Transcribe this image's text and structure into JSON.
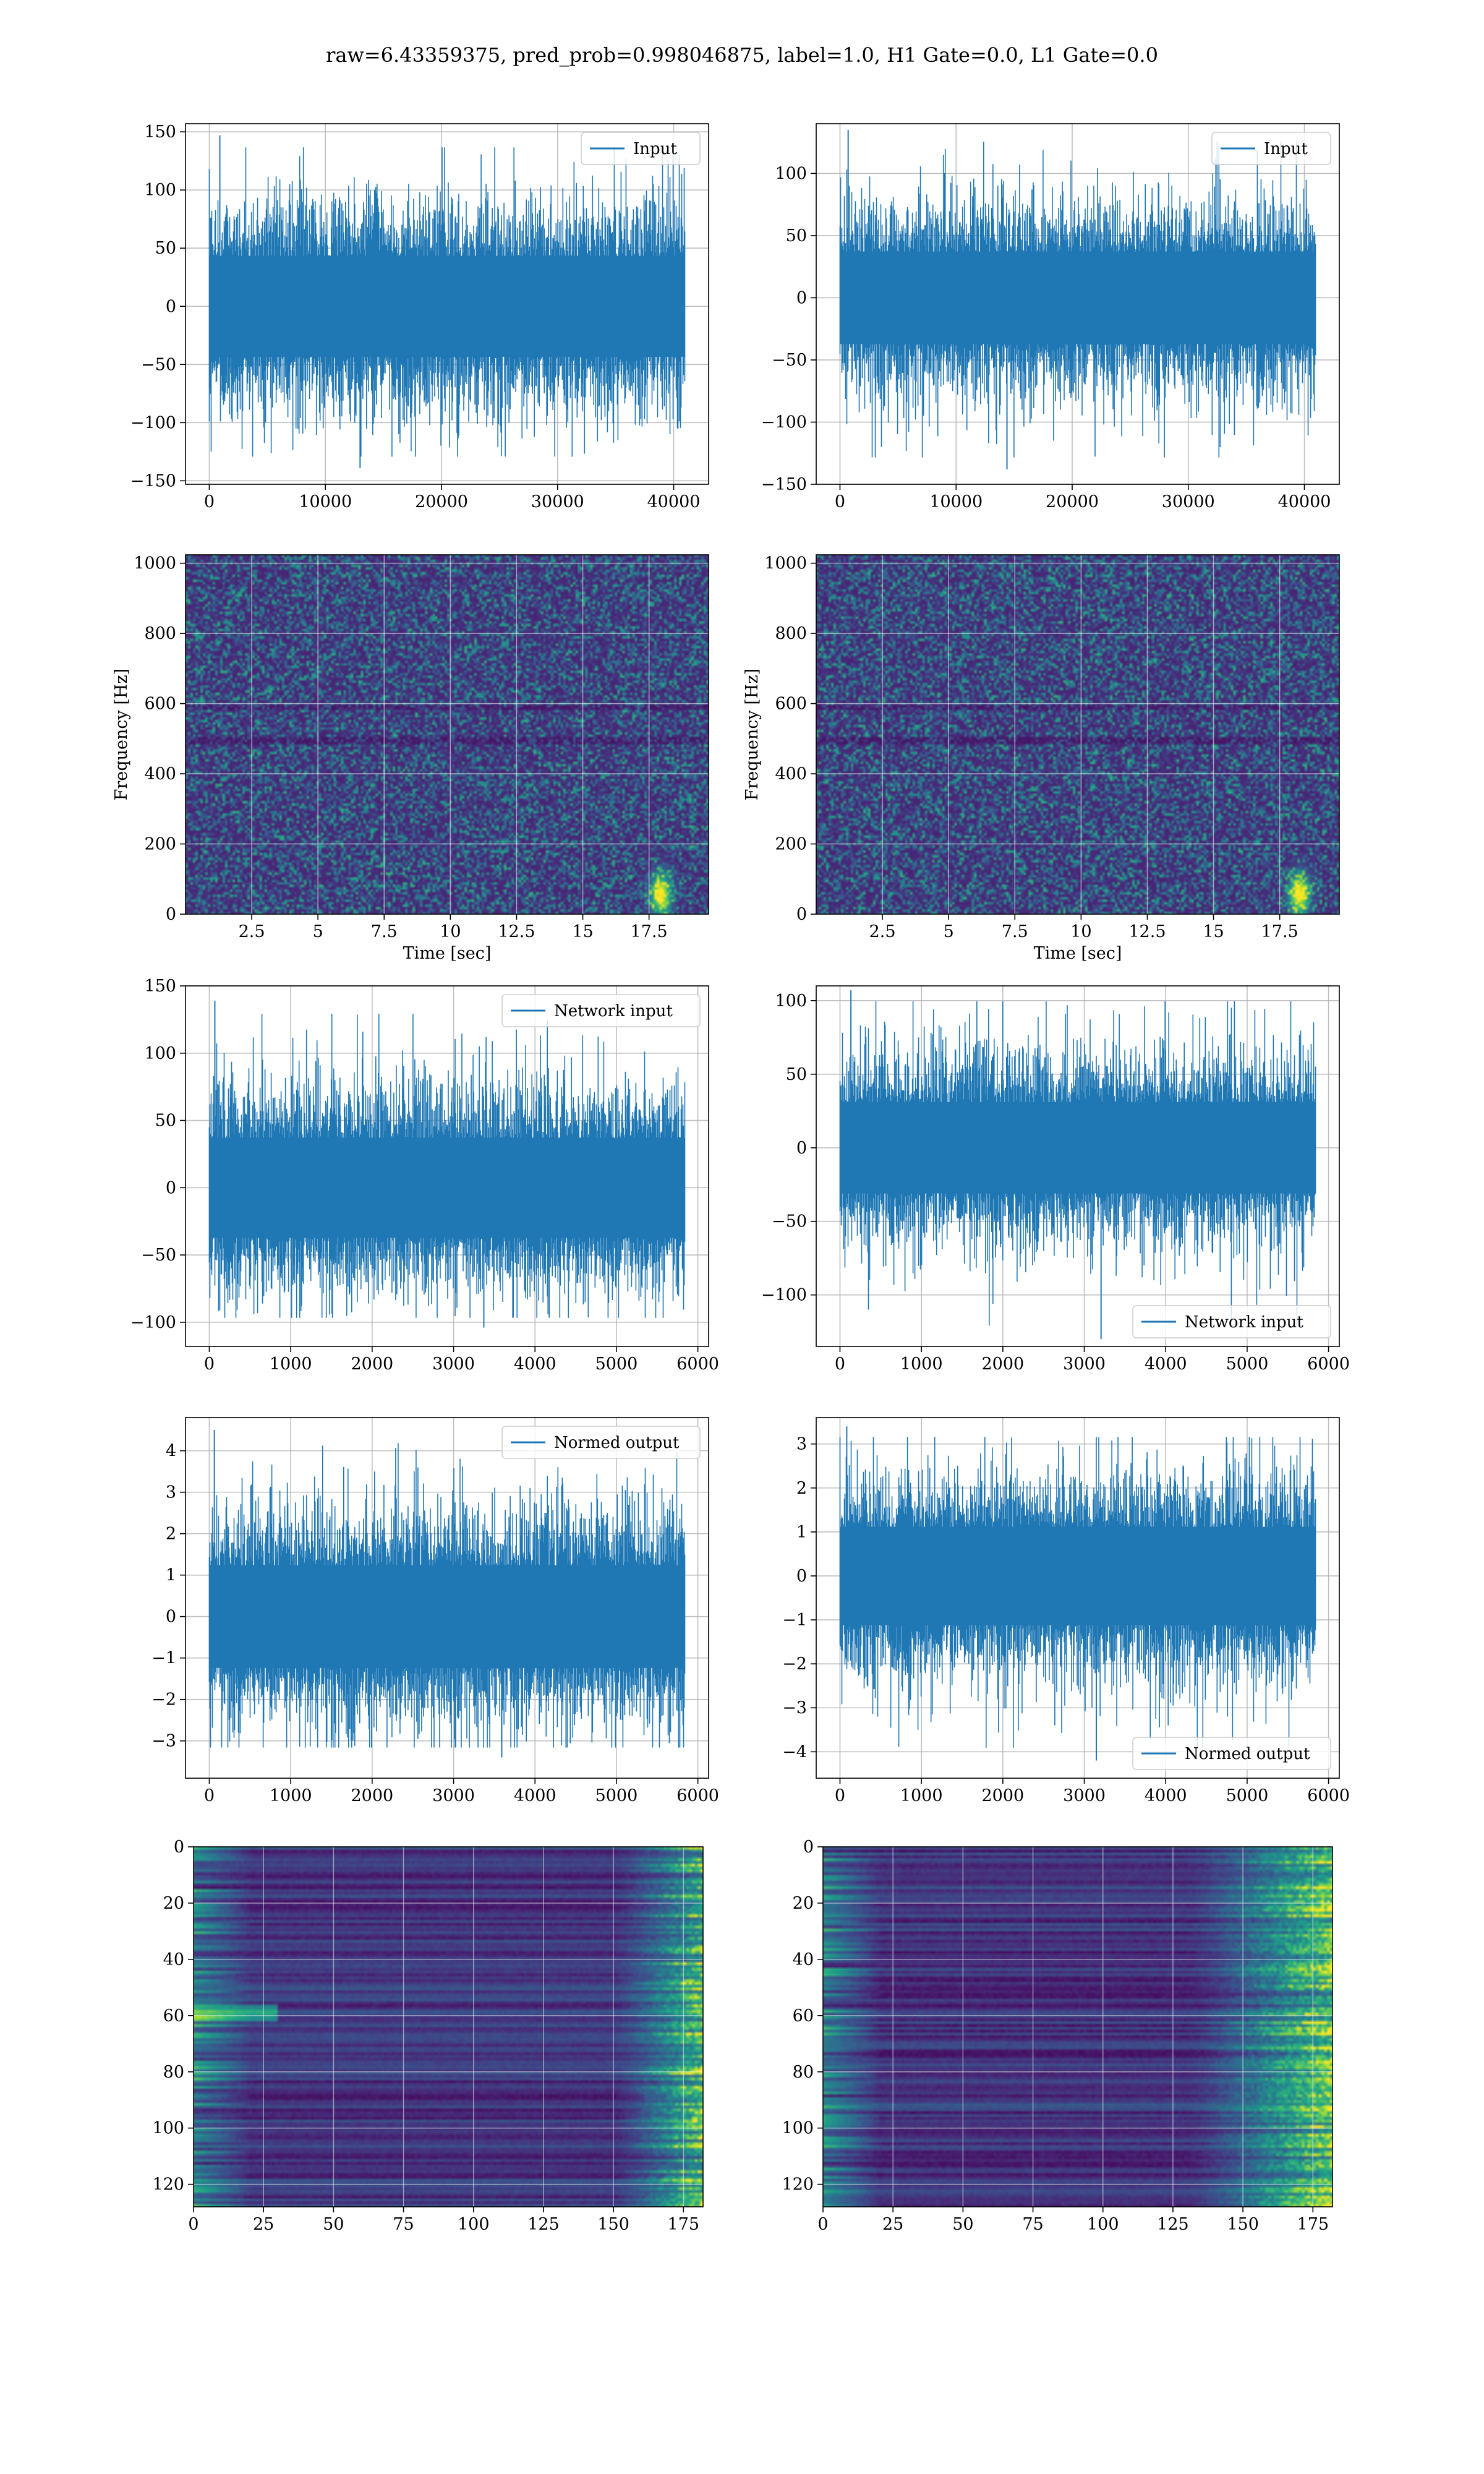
{
  "figure": {
    "suptitle": "raw=6.43359375, pred_prob=0.998046875, label=1.0, H1 Gate=0.0, L1 Gate=0.0"
  },
  "colors": {
    "line": "#1f77b4",
    "grid": "#b0b0b0",
    "viridis_dark": "#440154"
  },
  "chart_data": [
    {
      "id": "h1-input",
      "type": "line",
      "n_points": 40960,
      "xlim": [
        -2048,
        43008
      ],
      "ylim": [
        -153,
        157
      ],
      "xticks": [
        0,
        10000,
        20000,
        30000,
        40000
      ],
      "yticks": [
        -150,
        -100,
        -50,
        0,
        50,
        100,
        150
      ],
      "xlabel": "",
      "ylabel": "",
      "series": [
        {
          "name": "Input",
          "envelope_max": 147,
          "envelope_min": -139,
          "typical_abs": 70
        }
      ],
      "legend": "upper right",
      "grid": true
    },
    {
      "id": "l1-input",
      "type": "line",
      "n_points": 40960,
      "xlim": [
        -2048,
        43008
      ],
      "ylim": [
        -150,
        140
      ],
      "xticks": [
        0,
        10000,
        20000,
        30000,
        40000
      ],
      "yticks": [
        -150,
        -100,
        -50,
        0,
        50,
        100
      ],
      "xlabel": "",
      "ylabel": "",
      "series": [
        {
          "name": "Input",
          "envelope_max": 135,
          "envelope_min": -138,
          "typical_abs": 60
        }
      ],
      "legend": "upper right",
      "grid": true
    },
    {
      "id": "h1-spectrogram",
      "type": "heatmap",
      "colormap": "viridis",
      "xlim": [
        0,
        19.75
      ],
      "ylim": [
        0,
        1024
      ],
      "xticks": [
        2.5,
        5.0,
        7.5,
        10.0,
        12.5,
        15.0,
        17.5
      ],
      "yticks": [
        0,
        200,
        400,
        600,
        800,
        1000
      ],
      "xlabel": "Time [sec]",
      "ylabel": "Frequency [Hz]",
      "grid": true,
      "bright_spots": [
        {
          "t": 17.9,
          "f": 60
        }
      ]
    },
    {
      "id": "l1-spectrogram",
      "type": "heatmap",
      "colormap": "viridis",
      "xlim": [
        0,
        19.75
      ],
      "ylim": [
        0,
        1024
      ],
      "xticks": [
        2.5,
        5.0,
        7.5,
        10.0,
        12.5,
        15.0,
        17.5
      ],
      "yticks": [
        0,
        200,
        400,
        600,
        800,
        1000
      ],
      "xlabel": "Time [sec]",
      "ylabel": "Frequency [Hz]",
      "grid": true,
      "bright_spots": [
        {
          "t": 18.2,
          "f": 60
        }
      ]
    },
    {
      "id": "h1-network-input",
      "type": "line",
      "n_points": 5840,
      "xlim": [
        -292,
        6132
      ],
      "ylim": [
        -118,
        150
      ],
      "xticks": [
        0,
        1000,
        2000,
        3000,
        4000,
        5000,
        6000
      ],
      "yticks": [
        -100,
        -50,
        0,
        50,
        100,
        150
      ],
      "xlabel": "",
      "ylabel": "",
      "series": [
        {
          "name": "Network input",
          "envelope_max": 139,
          "envelope_min": -104,
          "typical_abs": 60
        }
      ],
      "legend": "upper right",
      "grid": true
    },
    {
      "id": "l1-network-input",
      "type": "line",
      "n_points": 5840,
      "xlim": [
        -292,
        6132
      ],
      "ylim": [
        -135,
        110
      ],
      "xticks": [
        0,
        1000,
        2000,
        3000,
        4000,
        5000,
        6000
      ],
      "yticks": [
        -100,
        -50,
        0,
        50,
        100
      ],
      "xlabel": "",
      "ylabel": "",
      "series": [
        {
          "name": "Network input",
          "envelope_max": 107,
          "envelope_min": -130,
          "typical_abs": 50
        }
      ],
      "legend": "lower right",
      "grid": true
    },
    {
      "id": "h1-normed-output",
      "type": "line",
      "n_points": 5840,
      "xlim": [
        -292,
        6132
      ],
      "ylim": [
        -3.9,
        4.8
      ],
      "xticks": [
        0,
        1000,
        2000,
        3000,
        4000,
        5000,
        6000
      ],
      "yticks": [
        -3,
        -2,
        -1,
        0,
        1,
        2,
        3,
        4
      ],
      "xlabel": "",
      "ylabel": "",
      "series": [
        {
          "name": "Normed output",
          "envelope_max": 4.5,
          "envelope_min": -3.4,
          "typical_abs": 2.0
        }
      ],
      "legend": "upper right",
      "grid": true
    },
    {
      "id": "l1-normed-output",
      "type": "line",
      "n_points": 5840,
      "xlim": [
        -292,
        6132
      ],
      "ylim": [
        -4.6,
        3.6
      ],
      "xticks": [
        0,
        1000,
        2000,
        3000,
        4000,
        5000,
        6000
      ],
      "yticks": [
        -4,
        -3,
        -2,
        -1,
        0,
        1,
        2,
        3
      ],
      "xlabel": "",
      "ylabel": "",
      "series": [
        {
          "name": "Normed output",
          "envelope_max": 3.4,
          "envelope_min": -4.2,
          "typical_abs": 1.8
        }
      ],
      "legend": "lower right",
      "grid": true
    },
    {
      "id": "h1-feature-map",
      "type": "heatmap",
      "colormap": "viridis",
      "xlim": [
        0,
        182
      ],
      "ylim": [
        128,
        0
      ],
      "xticks": [
        0,
        25,
        50,
        75,
        100,
        125,
        150,
        175
      ],
      "yticks": [
        0,
        20,
        40,
        60,
        80,
        100,
        120
      ],
      "xlabel": "",
      "ylabel": "",
      "grid": true
    },
    {
      "id": "l1-feature-map",
      "type": "heatmap",
      "colormap": "viridis",
      "xlim": [
        0,
        182
      ],
      "ylim": [
        128,
        0
      ],
      "xticks": [
        0,
        25,
        50,
        75,
        100,
        125,
        150,
        175
      ],
      "yticks": [
        0,
        20,
        40,
        60,
        80,
        100,
        120
      ],
      "xlabel": "",
      "ylabel": "",
      "grid": true
    }
  ]
}
